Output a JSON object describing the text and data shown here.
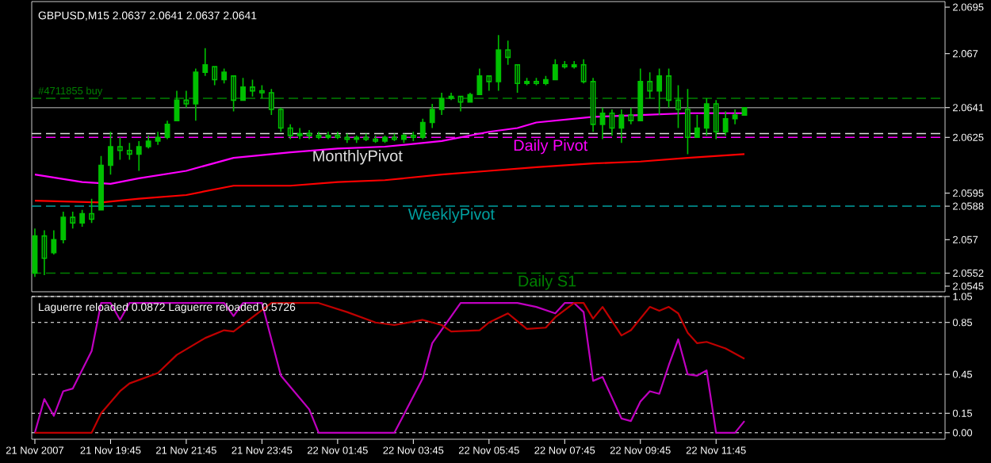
{
  "chart_data": [
    {
      "type": "candlestick",
      "title": "GBPUSD,M15  2.0637 2.0641 2.0637 2.0641",
      "color": "#00c000",
      "x": [
        "2007-11-21T17:45",
        "2007-11-21T18:00",
        "2007-11-21T18:15",
        "2007-11-21T18:30",
        "2007-11-21T18:45",
        "2007-11-21T19:00",
        "2007-11-21T19:15",
        "2007-11-21T19:30",
        "2007-11-21T19:45",
        "2007-11-21T20:00",
        "2007-11-21T20:15",
        "2007-11-21T20:30",
        "2007-11-21T20:45",
        "2007-11-21T21:00",
        "2007-11-21T21:15",
        "2007-11-21T21:30",
        "2007-11-21T21:45",
        "2007-11-21T22:00",
        "2007-11-21T22:15",
        "2007-11-21T22:30",
        "2007-11-21T22:45",
        "2007-11-21T23:00",
        "2007-11-21T23:15",
        "2007-11-21T23:30",
        "2007-11-21T23:45",
        "2007-11-22T00:00",
        "2007-11-22T00:15",
        "2007-11-22T00:30",
        "2007-11-22T00:45",
        "2007-11-22T01:00",
        "2007-11-22T01:15",
        "2007-11-22T01:30",
        "2007-11-22T01:45",
        "2007-11-22T02:00",
        "2007-11-22T02:15",
        "2007-11-22T02:30",
        "2007-11-22T02:45",
        "2007-11-22T03:00",
        "2007-11-22T03:15",
        "2007-11-22T03:30",
        "2007-11-22T03:45",
        "2007-11-22T04:00",
        "2007-11-22T04:15",
        "2007-11-22T04:30",
        "2007-11-22T04:45",
        "2007-11-22T05:00",
        "2007-11-22T05:15",
        "2007-11-22T05:30",
        "2007-11-22T05:45",
        "2007-11-22T06:00",
        "2007-11-22T06:15",
        "2007-11-22T06:30",
        "2007-11-22T06:45",
        "2007-11-22T07:00",
        "2007-11-22T07:15",
        "2007-11-22T07:30",
        "2007-11-22T07:45",
        "2007-11-22T08:00",
        "2007-11-22T08:15",
        "2007-11-22T08:30",
        "2007-11-22T08:45",
        "2007-11-22T09:00",
        "2007-11-22T09:15",
        "2007-11-22T09:30",
        "2007-11-22T09:45",
        "2007-11-22T10:00",
        "2007-11-22T10:15",
        "2007-11-22T10:30",
        "2007-11-22T10:45",
        "2007-11-22T11:00",
        "2007-11-22T11:15",
        "2007-11-22T11:30",
        "2007-11-22T11:45",
        "2007-11-22T12:00",
        "2007-11-22T12:15",
        "2007-11-22T12:30"
      ],
      "ohlc": [
        [
          2.0552,
          2.0576,
          2.055,
          2.0572
        ],
        [
          2.0572,
          2.0575,
          2.0551,
          2.056
        ],
        [
          2.0563,
          2.0575,
          2.0562,
          2.057
        ],
        [
          2.057,
          2.0585,
          2.0568,
          2.0582
        ],
        [
          2.0582,
          2.0585,
          2.0576,
          2.0579
        ],
        [
          2.0579,
          2.0586,
          2.0577,
          2.0584
        ],
        [
          2.0584,
          2.0592,
          2.0579,
          2.0581
        ],
        [
          2.0586,
          2.0615,
          2.0586,
          2.061
        ],
        [
          2.061,
          2.0628,
          2.0605,
          2.062
        ],
        [
          2.062,
          2.0625,
          2.0613,
          2.0618
        ],
        [
          2.0618,
          2.0622,
          2.0613,
          2.0616
        ],
        [
          2.0616,
          2.0623,
          2.0607,
          2.062
        ],
        [
          2.062,
          2.0626,
          2.0619,
          2.0623
        ],
        [
          2.0623,
          2.0628,
          2.0621,
          2.0625
        ],
        [
          2.0625,
          2.0634,
          2.0624,
          2.0632
        ],
        [
          2.0634,
          2.065,
          2.0634,
          2.0645
        ],
        [
          2.0645,
          2.065,
          2.0641,
          2.0643
        ],
        [
          2.0643,
          2.0662,
          2.0634,
          2.066
        ],
        [
          2.066,
          2.0673,
          2.0658,
          2.0664
        ],
        [
          2.0663,
          2.0663,
          2.0653,
          2.0656
        ],
        [
          2.0656,
          2.0662,
          2.0654,
          2.066
        ],
        [
          2.0658,
          2.0658,
          2.0639,
          2.0645
        ],
        [
          2.0645,
          2.0657,
          2.0645,
          2.0652
        ],
        [
          2.0652,
          2.0656,
          2.0647,
          2.065
        ],
        [
          2.065,
          2.0653,
          2.0646,
          2.0649
        ],
        [
          2.0649,
          2.0651,
          2.0637,
          2.064
        ],
        [
          2.064,
          2.0641,
          2.0628,
          2.063
        ],
        [
          2.063,
          2.0632,
          2.0624,
          2.0626
        ],
        [
          2.0626,
          2.063,
          2.0624,
          2.0627
        ],
        [
          2.0627,
          2.0629,
          2.0624,
          2.0626
        ],
        [
          2.0626,
          2.0628,
          2.0624,
          2.0625
        ],
        [
          2.0625,
          2.0628,
          2.0624,
          2.0626
        ],
        [
          2.0626,
          2.0628,
          2.0624,
          2.0625
        ],
        [
          2.0625,
          2.0627,
          2.0622,
          2.0624
        ],
        [
          2.0624,
          2.0626,
          2.0622,
          2.0625
        ],
        [
          2.0625,
          2.0627,
          2.0623,
          2.0624
        ],
        [
          2.0624,
          2.0626,
          2.0622,
          2.0623
        ],
        [
          2.0623,
          2.0626,
          2.0622,
          2.0625
        ],
        [
          2.0625,
          2.0627,
          2.0623,
          2.0624
        ],
        [
          2.0624,
          2.0627,
          2.0622,
          2.0626
        ],
        [
          2.0626,
          2.0628,
          2.0623,
          2.0625
        ],
        [
          2.0625,
          2.0635,
          2.0624,
          2.0633
        ],
        [
          2.0633,
          2.0643,
          2.063,
          2.064
        ],
        [
          2.064,
          2.0649,
          2.0637,
          2.0646
        ],
        [
          2.0646,
          2.0649,
          2.0645,
          2.0647
        ],
        [
          2.0647,
          2.0647,
          2.0639,
          2.0644
        ],
        [
          2.0644,
          2.0649,
          2.0644,
          2.0648
        ],
        [
          2.0648,
          2.0662,
          2.0648,
          2.0658
        ],
        [
          2.0658,
          2.0658,
          2.065,
          2.0655
        ],
        [
          2.0655,
          2.068,
          2.065,
          2.0672
        ],
        [
          2.0672,
          2.0677,
          2.0664,
          2.0668
        ],
        [
          2.0664,
          2.0664,
          2.0649,
          2.0654
        ],
        [
          2.0654,
          2.0657,
          2.0653,
          2.0655
        ],
        [
          2.0655,
          2.0657,
          2.0653,
          2.0654
        ],
        [
          2.0654,
          2.0658,
          2.0653,
          2.0656
        ],
        [
          2.0656,
          2.0667,
          2.0656,
          2.0664
        ],
        [
          2.0664,
          2.0666,
          2.0662,
          2.0663
        ],
        [
          2.0663,
          2.0666,
          2.0662,
          2.0664
        ],
        [
          2.0664,
          2.0667,
          2.0654,
          2.0655
        ],
        [
          2.0655,
          2.0657,
          2.0628,
          2.0632
        ],
        [
          2.0632,
          2.0641,
          2.0624,
          2.0638
        ],
        [
          2.0638,
          2.064,
          2.0626,
          2.063
        ],
        [
          2.063,
          2.064,
          2.0622,
          2.0637
        ],
        [
          2.0637,
          2.0641,
          2.0632,
          2.0634
        ],
        [
          2.0634,
          2.0662,
          2.0634,
          2.0655
        ],
        [
          2.0655,
          2.066,
          2.0646,
          2.065
        ],
        [
          2.065,
          2.0662,
          2.0637,
          2.0658
        ],
        [
          2.0658,
          2.0662,
          2.0641,
          2.0645
        ],
        [
          2.0645,
          2.0653,
          2.063,
          2.064
        ],
        [
          2.064,
          2.0651,
          2.0616,
          2.0625
        ],
        [
          2.0625,
          2.0637,
          2.0625,
          2.063
        ],
        [
          2.063,
          2.0646,
          2.0626,
          2.0643
        ],
        [
          2.0643,
          2.0645,
          2.0624,
          2.0628
        ],
        [
          2.0628,
          2.0639,
          2.0626,
          2.0635
        ],
        [
          2.0635,
          2.064,
          2.0632,
          2.0637
        ],
        [
          2.0637,
          2.0641,
          2.0637,
          2.0641
        ]
      ],
      "series": [
        {
          "type": "line",
          "color": "#ff00ff",
          "x": [
            "2007-11-21T17:45",
            "2007-11-21T19:00",
            "2007-11-21T19:45",
            "2007-11-21T20:30",
            "2007-11-21T21:45",
            "2007-11-21T23:00",
            "2007-11-22T00:30",
            "2007-11-22T01:45",
            "2007-11-22T03:00",
            "2007-11-22T04:30",
            "2007-11-22T05:45",
            "2007-11-22T06:30",
            "2007-11-22T07:00",
            "2007-11-22T08:30",
            "2007-11-22T09:45",
            "2007-11-22T11:00",
            "2007-11-22T12:30"
          ],
          "values": [
            2.0605,
            2.0601,
            2.06,
            2.0603,
            2.0607,
            2.0614,
            2.0617,
            2.0619,
            2.062,
            2.0623,
            2.0628,
            2.063,
            2.0633,
            2.0636,
            2.0637,
            2.0638,
            2.0638
          ]
        },
        {
          "type": "line",
          "color": "#ff0000",
          "x": [
            "2007-11-21T17:45",
            "2007-11-21T19:30",
            "2007-11-21T20:30",
            "2007-11-21T21:45",
            "2007-11-21T23:00",
            "2007-11-22T00:30",
            "2007-11-22T01:45",
            "2007-11-22T03:00",
            "2007-11-22T04:30",
            "2007-11-22T05:45",
            "2007-11-22T07:00",
            "2007-11-22T08:30",
            "2007-11-22T09:45",
            "2007-11-22T11:00",
            "2007-11-22T12:30"
          ],
          "values": [
            2.0591,
            2.059,
            2.0592,
            2.0594,
            2.0599,
            2.0599,
            2.0601,
            2.0602,
            2.0605,
            2.0607,
            2.0609,
            2.0611,
            2.0612,
            2.0614,
            2.0616
          ]
        }
      ],
      "ref_lines": [
        {
          "axis": "y",
          "value": 2.0646,
          "label": "#4711855 buy",
          "color": "#008000",
          "line_style": "dashed"
        },
        {
          "axis": "y",
          "value": 2.0641,
          "color": "#808080",
          "line_style": "solid"
        },
        {
          "axis": "y",
          "value": 2.0627,
          "label": "MonthlyPivot",
          "color": "#e0e0e0",
          "line_style": "dashed"
        },
        {
          "axis": "y",
          "value": 2.0625,
          "label": "Daily Pivot",
          "color": "#ff00ff",
          "line_style": "dashed"
        },
        {
          "axis": "y",
          "value": 2.0588,
          "label": "WeeklyPivot",
          "color": "#00a0a0",
          "line_style": "dashed"
        },
        {
          "axis": "y",
          "value": 2.0552,
          "label": "Daily S1",
          "color": "#008000",
          "line_style": "dashed"
        }
      ],
      "xlim": [
        "2007-11-21T17:40",
        "2007-11-22T17:48"
      ],
      "ylim": [
        2.0542,
        2.0698
      ],
      "yticks": [
        2.0695,
        2.067,
        {
          "value": 2.0641,
          "label": "2.0641"
        },
        {
          "value": 2.0625,
          "label": "2.0625"
        },
        2.0595,
        {
          "value": 2.0588,
          "label": "2.0588"
        },
        2.057,
        {
          "value": 2.0552,
          "label": "2.0552"
        },
        2.0545
      ],
      "tick_labels": "y"
    },
    {
      "type": "line",
      "title": "Laguerre reloaded 0.0872  Laguerre reloaded 0.5726",
      "series": [
        {
          "color": "#c000c0",
          "x": [
            "2007-11-21T17:45",
            "2007-11-21T18:00",
            "2007-11-21T18:15",
            "2007-11-21T18:30",
            "2007-11-21T18:45",
            "2007-11-21T19:15",
            "2007-11-21T19:30",
            "2007-11-21T19:45",
            "2007-11-21T20:00",
            "2007-11-21T20:15",
            "2007-11-21T22:45",
            "2007-11-21T23:00",
            "2007-11-21T23:15",
            "2007-11-21T23:45",
            "2007-11-22T00:15",
            "2007-11-22T01:00",
            "2007-11-22T01:15",
            "2007-11-22T03:15",
            "2007-11-22T04:00",
            "2007-11-22T04:15",
            "2007-11-22T05:00",
            "2007-11-22T06:30",
            "2007-11-22T07:00",
            "2007-11-22T07:30",
            "2007-11-22T07:45",
            "2007-11-22T08:00",
            "2007-11-22T08:15",
            "2007-11-22T08:30",
            "2007-11-22T08:45",
            "2007-11-22T09:15",
            "2007-11-22T09:30",
            "2007-11-22T09:45",
            "2007-11-22T10:00",
            "2007-11-22T10:15",
            "2007-11-22T10:30",
            "2007-11-22T10:45",
            "2007-11-22T11:00",
            "2007-11-22T11:15",
            "2007-11-22T11:30",
            "2007-11-22T11:45",
            "2007-11-22T12:15",
            "2007-11-22T12:30"
          ],
          "values": [
            0,
            0.26,
            0.13,
            0.32,
            0.34,
            0.63,
            1,
            1,
            0.87,
            1,
            1,
            0.9,
            1,
            1,
            0.44,
            0.18,
            0,
            0,
            0.42,
            0.69,
            1,
            1,
            0.97,
            0.92,
            1,
            1,
            0.93,
            0.4,
            0.43,
            0.11,
            0.09,
            0.24,
            0.32,
            0.3,
            0.52,
            0.72,
            0.45,
            0.44,
            0.48,
            0,
            0,
            0.09
          ]
        },
        {
          "color": "#c00000",
          "x": [
            "2007-11-21T17:45",
            "2007-11-21T19:15",
            "2007-11-21T19:30",
            "2007-11-21T20:00",
            "2007-11-21T20:15",
            "2007-11-21T21:00",
            "2007-11-21T21:30",
            "2007-11-21T22:15",
            "2007-11-21T22:45",
            "2007-11-21T23:00",
            "2007-11-21T23:30",
            "2007-11-22T00:00",
            "2007-11-22T01:15",
            "2007-11-22T02:00",
            "2007-11-22T02:45",
            "2007-11-22T03:15",
            "2007-11-22T04:00",
            "2007-11-22T04:30",
            "2007-11-22T04:45",
            "2007-11-22T05:30",
            "2007-11-22T05:45",
            "2007-11-22T06:15",
            "2007-11-22T06:30",
            "2007-11-22T06:45",
            "2007-11-22T07:15",
            "2007-11-22T07:30",
            "2007-11-22T08:00",
            "2007-11-22T08:15",
            "2007-11-22T08:30",
            "2007-11-22T08:45",
            "2007-11-22T09:15",
            "2007-11-22T09:30",
            "2007-11-22T10:00",
            "2007-11-22T10:15",
            "2007-11-22T10:30",
            "2007-11-22T10:45",
            "2007-11-22T11:00",
            "2007-11-22T11:15",
            "2007-11-22T11:30",
            "2007-11-22T12:00",
            "2007-11-22T12:30"
          ],
          "values": [
            0,
            0,
            0.15,
            0.32,
            0.38,
            0.46,
            0.6,
            0.73,
            0.79,
            0.78,
            0.89,
            1,
            1,
            0.93,
            0.85,
            0.83,
            0.87,
            0.83,
            0.78,
            0.79,
            0.85,
            0.92,
            0.86,
            0.8,
            0.81,
            0.89,
            1,
            1,
            0.88,
            0.97,
            0.75,
            0.79,
            0.97,
            0.94,
            0.97,
            0.92,
            0.77,
            0.69,
            0.7,
            0.65,
            0.57
          ]
        }
      ],
      "xlim": [
        "2007-11-21T17:40",
        "2007-11-22T17:48"
      ],
      "xticks": [
        {
          "value": "2007-11-21T17:45",
          "label": "21 Nov 2007"
        },
        {
          "value": "2007-11-21T19:45",
          "label": "21 Nov 19:45"
        },
        {
          "value": "2007-11-21T21:45",
          "label": "21 Nov 21:45"
        },
        {
          "value": "2007-11-21T23:45",
          "label": "21 Nov 23:45"
        },
        {
          "value": "2007-11-22T01:45",
          "label": "22 Nov 01:45"
        },
        {
          "value": "2007-11-22T03:45",
          "label": "22 Nov 03:45"
        },
        {
          "value": "2007-11-22T05:45",
          "label": "22 Nov 05:45"
        },
        {
          "value": "2007-11-22T07:45",
          "label": "22 Nov 07:45"
        },
        {
          "value": "2007-11-22T09:45",
          "label": "22 Nov 09:45"
        },
        {
          "value": "2007-11-22T11:45",
          "label": "22 Nov 11:45"
        }
      ],
      "ylim": [
        -0.05,
        1.05
      ],
      "yticks": [
        1.05,
        0.85,
        0.45,
        0.15,
        {
          "value": 0,
          "label": "0.00"
        }
      ],
      "grid": "y"
    }
  ]
}
